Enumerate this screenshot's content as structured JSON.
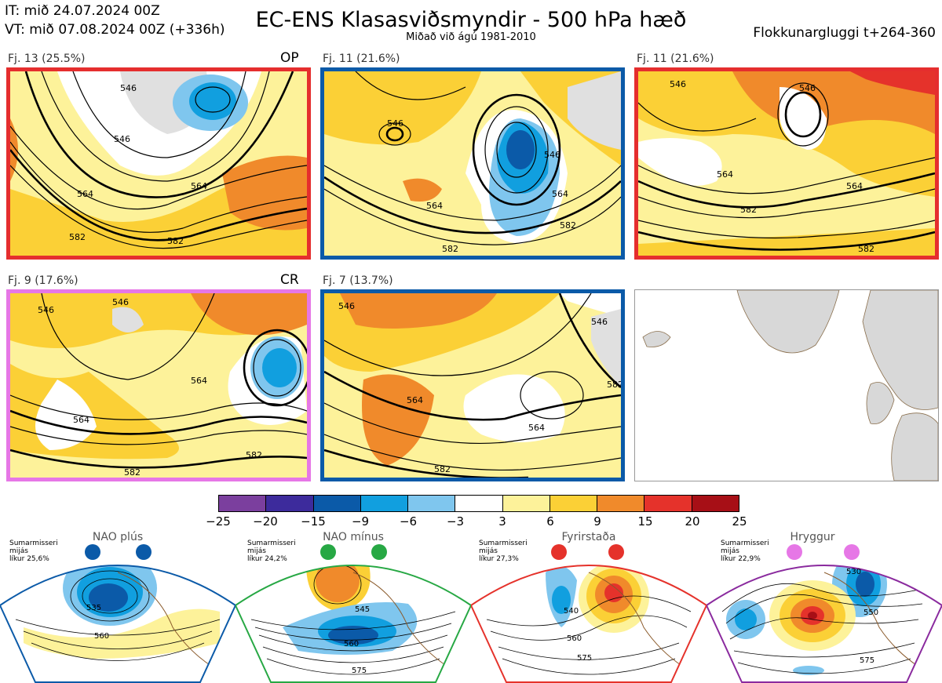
{
  "header": {
    "it": "IT: mið 24.07.2024 00Z",
    "vt": "VT: mið 07.08.2024 00Z  (+336h)",
    "title": "EC-ENS Klasasviðsmyndir - 500 hPa hæð",
    "subtitle": "Miðað við ágú 1981-2010",
    "window": "Flokkunargluggi t+264-360"
  },
  "panels": [
    {
      "label": "Fj. 13 (25.5%)",
      "tag": "OP",
      "border": "#e52e2e",
      "contours": [
        "546",
        "546",
        "564",
        "564",
        "582",
        "582"
      ]
    },
    {
      "label": "Fj. 11 (21.6%)",
      "tag": "",
      "border": "#0b5aa8",
      "contours": [
        "546",
        "546",
        "564",
        "564",
        "582",
        "582"
      ]
    },
    {
      "label": "Fj. 11 (21.6%)",
      "tag": "",
      "border": "#e52e2e",
      "contours": [
        "546",
        "546",
        "564",
        "564",
        "582",
        "582"
      ]
    },
    {
      "label": "Fj. 9 (17.6%)",
      "tag": "CR",
      "border": "#e677e6",
      "contours": [
        "546",
        "546",
        "564",
        "564",
        "582",
        "582"
      ]
    },
    {
      "label": "Fj. 7 (13.7%)",
      "tag": "",
      "border": "#0b5aa8",
      "contours": [
        "546",
        "546",
        "564",
        "564",
        "582",
        "582"
      ]
    }
  ],
  "colorbar": {
    "colors": [
      "#7b3f9e",
      "#3d2b9c",
      "#0b5aa8",
      "#119fdf",
      "#7fc6ee",
      "#ffffff",
      "#fdf29a",
      "#fbd036",
      "#f08a2b",
      "#e5322b",
      "#a70f16"
    ],
    "ticks": [
      "−25",
      "−20",
      "−15",
      "−9",
      "−6",
      "−3",
      "3",
      "6",
      "9",
      "15",
      "20",
      "25"
    ]
  },
  "regimes": [
    {
      "name": "NAO plús",
      "season": "Sumarmisseri",
      "anomaly": "mijás",
      "prob": "líkur 25,6%",
      "color": "#0b5aa8",
      "contours": [
        "535",
        "560"
      ]
    },
    {
      "name": "NAO mínus",
      "season": "Sumarmisseri",
      "anomaly": "mijás",
      "prob": "líkur 24,2%",
      "color": "#27a844",
      "contours": [
        "545",
        "560",
        "575"
      ]
    },
    {
      "name": "Fyrirstaða",
      "season": "Sumarmisseri",
      "anomaly": "mijás",
      "prob": "líkur 27,3%",
      "color": "#e5322b",
      "contours": [
        "540",
        "560",
        "575"
      ]
    },
    {
      "name": "Hryggur",
      "season": "Sumarmisseri",
      "anomaly": "mijás",
      "prob": "líkur 22,9%",
      "color": "#e677e6",
      "contours": [
        "530",
        "550",
        "575"
      ]
    }
  ]
}
